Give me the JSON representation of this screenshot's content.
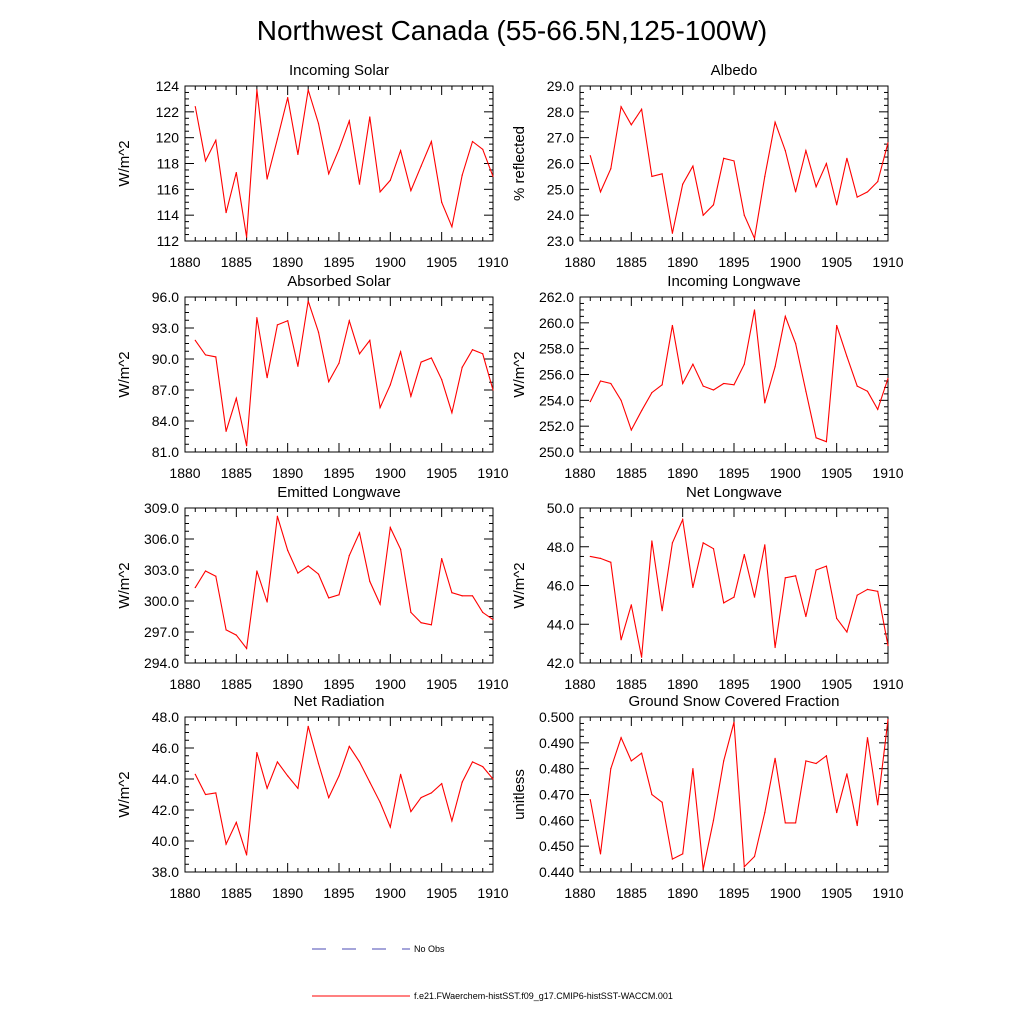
{
  "figure": {
    "title": "Northwest Canada (55-66.5N,125-100W)"
  },
  "legend": {
    "items": [
      {
        "label": "No Obs",
        "color": "#4b4bb4",
        "style": "dashed"
      },
      {
        "label": "f.e21.FWaerchem-histSST.f09_g17.CMIP6-histSST-WACCM.001",
        "color": "#ff0000",
        "style": "solid"
      }
    ]
  },
  "chart_data": [
    {
      "type": "line",
      "title": "Incoming Solar",
      "ylabel": "W/m^2",
      "xlim": [
        1880,
        1910
      ],
      "ylim": [
        112,
        124
      ],
      "xticks": [
        "1880",
        "1885",
        "1890",
        "1895",
        "1900",
        "1905",
        "1910"
      ],
      "yticks": [
        "112",
        "114",
        "116",
        "118",
        "120",
        "122",
        "124"
      ],
      "series": [
        {
          "color": "#ff0000",
          "x": [
            1881,
            1882,
            1883,
            1884,
            1885,
            1886,
            1887,
            1888,
            1889,
            1890,
            1891,
            1892,
            1893,
            1894,
            1895,
            1896,
            1897,
            1898,
            1899,
            1900,
            1901,
            1902,
            1903,
            1904,
            1905,
            1906,
            1907,
            1908,
            1909,
            1910
          ],
          "values": [
            122.4,
            118.2,
            119.8,
            114.2,
            117.3,
            112.3,
            123.7,
            116.8,
            119.9,
            123.1,
            118.7,
            123.7,
            121.1,
            117.2,
            119.1,
            121.3,
            116.4,
            121.6,
            115.8,
            116.7,
            119.0,
            115.9,
            117.8,
            119.7,
            115.0,
            113.1,
            117.1,
            119.7,
            119.1,
            117.0
          ]
        }
      ]
    },
    {
      "type": "line",
      "title": "Albedo",
      "ylabel": "% reflected",
      "xlim": [
        1880,
        1910
      ],
      "ylim": [
        23.0,
        29.0
      ],
      "xticks": [
        "1880",
        "1885",
        "1890",
        "1895",
        "1900",
        "1905",
        "1910"
      ],
      "yticks": [
        "23.0",
        "24.0",
        "25.0",
        "26.0",
        "27.0",
        "28.0",
        "29.0"
      ],
      "series": [
        {
          "color": "#ff0000",
          "x": [
            1881,
            1882,
            1883,
            1884,
            1885,
            1886,
            1887,
            1888,
            1889,
            1890,
            1891,
            1892,
            1893,
            1894,
            1895,
            1896,
            1897,
            1898,
            1899,
            1900,
            1901,
            1902,
            1903,
            1904,
            1905,
            1906,
            1907,
            1908,
            1909,
            1910
          ],
          "values": [
            26.3,
            24.9,
            25.8,
            28.2,
            27.5,
            28.1,
            25.5,
            25.6,
            23.3,
            25.2,
            25.9,
            24.0,
            24.4,
            26.2,
            26.1,
            24.0,
            23.1,
            25.5,
            27.6,
            26.5,
            24.9,
            26.5,
            25.1,
            26.0,
            24.4,
            26.2,
            24.7,
            24.9,
            25.3,
            26.8
          ]
        }
      ]
    },
    {
      "type": "line",
      "title": "Absorbed Solar",
      "ylabel": "W/m^2",
      "xlim": [
        1880,
        1910
      ],
      "ylim": [
        81.0,
        96.0
      ],
      "xticks": [
        "1880",
        "1885",
        "1890",
        "1895",
        "1900",
        "1905",
        "1910"
      ],
      "yticks": [
        "81.0",
        "84.0",
        "87.0",
        "90.0",
        "93.0",
        "96.0"
      ],
      "series": [
        {
          "color": "#ff0000",
          "x": [
            1881,
            1882,
            1883,
            1884,
            1885,
            1886,
            1887,
            1888,
            1889,
            1890,
            1891,
            1892,
            1893,
            1894,
            1895,
            1896,
            1897,
            1898,
            1899,
            1900,
            1901,
            1902,
            1903,
            1904,
            1905,
            1906,
            1907,
            1908,
            1909,
            1910
          ],
          "values": [
            91.8,
            90.4,
            90.2,
            83.0,
            86.2,
            81.6,
            94.0,
            88.2,
            93.3,
            93.7,
            89.3,
            95.6,
            92.6,
            87.8,
            89.6,
            93.7,
            90.5,
            91.8,
            85.3,
            87.5,
            90.7,
            86.4,
            89.7,
            90.1,
            88.0,
            84.8,
            89.2,
            90.9,
            90.5,
            87.0
          ]
        }
      ]
    },
    {
      "type": "line",
      "title": "Incoming Longwave",
      "ylabel": "W/m^2",
      "xlim": [
        1880,
        1910
      ],
      "ylim": [
        250.0,
        262.0
      ],
      "xticks": [
        "1880",
        "1885",
        "1890",
        "1895",
        "1900",
        "1905",
        "1910"
      ],
      "yticks": [
        "250.0",
        "252.0",
        "254.0",
        "256.0",
        "258.0",
        "260.0",
        "262.0"
      ],
      "series": [
        {
          "color": "#ff0000",
          "x": [
            1881,
            1882,
            1883,
            1884,
            1885,
            1886,
            1887,
            1888,
            1889,
            1890,
            1891,
            1892,
            1893,
            1894,
            1895,
            1896,
            1897,
            1898,
            1899,
            1900,
            1901,
            1902,
            1903,
            1904,
            1905,
            1906,
            1907,
            1908,
            1909,
            1910
          ],
          "values": [
            253.9,
            255.5,
            255.3,
            254.0,
            251.7,
            253.2,
            254.6,
            255.2,
            259.8,
            255.3,
            256.8,
            255.1,
            254.8,
            255.3,
            255.2,
            256.8,
            261.0,
            253.8,
            256.6,
            260.5,
            258.4,
            254.7,
            251.1,
            250.8,
            259.8,
            257.4,
            255.1,
            254.7,
            253.3,
            255.7
          ]
        }
      ]
    },
    {
      "type": "line",
      "title": "Emitted Longwave",
      "ylabel": "W/m^2",
      "xlim": [
        1880,
        1910
      ],
      "ylim": [
        294.0,
        309.0
      ],
      "xticks": [
        "1880",
        "1885",
        "1890",
        "1895",
        "1900",
        "1905",
        "1910"
      ],
      "yticks": [
        "294.0",
        "297.0",
        "300.0",
        "303.0",
        "306.0",
        "309.0"
      ],
      "series": [
        {
          "color": "#ff0000",
          "x": [
            1881,
            1882,
            1883,
            1884,
            1885,
            1886,
            1887,
            1888,
            1889,
            1890,
            1891,
            1892,
            1893,
            1894,
            1895,
            1896,
            1897,
            1898,
            1899,
            1900,
            1901,
            1902,
            1903,
            1904,
            1905,
            1906,
            1907,
            1908,
            1909,
            1910
          ],
          "values": [
            301.3,
            302.9,
            302.4,
            297.2,
            296.7,
            295.4,
            302.9,
            299.9,
            308.2,
            304.9,
            302.7,
            303.4,
            302.6,
            300.3,
            300.6,
            304.4,
            306.6,
            301.9,
            299.7,
            307.1,
            305.0,
            298.9,
            297.9,
            297.7,
            304.1,
            300.8,
            300.5,
            300.5,
            298.9,
            298.2
          ]
        }
      ]
    },
    {
      "type": "line",
      "title": "Net Longwave",
      "ylabel": "W/m^2",
      "xlim": [
        1880,
        1910
      ],
      "ylim": [
        42.0,
        50.0
      ],
      "xticks": [
        "1880",
        "1885",
        "1890",
        "1895",
        "1900",
        "1905",
        "1910"
      ],
      "yticks": [
        "42.0",
        "44.0",
        "46.0",
        "48.0",
        "50.0"
      ],
      "series": [
        {
          "color": "#ff0000",
          "x": [
            1881,
            1882,
            1883,
            1884,
            1885,
            1886,
            1887,
            1888,
            1889,
            1890,
            1891,
            1892,
            1893,
            1894,
            1895,
            1896,
            1897,
            1898,
            1899,
            1900,
            1901,
            1902,
            1903,
            1904,
            1905,
            1906,
            1907,
            1908,
            1909,
            1910
          ],
          "values": [
            47.5,
            47.4,
            47.2,
            43.2,
            45.0,
            42.3,
            48.3,
            44.7,
            48.2,
            49.4,
            45.9,
            48.2,
            47.9,
            45.1,
            45.4,
            47.6,
            45.4,
            48.1,
            42.8,
            46.4,
            46.5,
            44.4,
            46.8,
            47.0,
            44.3,
            43.6,
            45.5,
            45.8,
            45.7,
            42.9
          ]
        }
      ]
    },
    {
      "type": "line",
      "title": "Net Radiation",
      "ylabel": "W/m^2",
      "xlim": [
        1880,
        1910
      ],
      "ylim": [
        38.0,
        48.0
      ],
      "xticks": [
        "1880",
        "1885",
        "1890",
        "1895",
        "1900",
        "1905",
        "1910"
      ],
      "yticks": [
        "38.0",
        "40.0",
        "42.0",
        "44.0",
        "46.0",
        "48.0"
      ],
      "series": [
        {
          "color": "#ff0000",
          "x": [
            1881,
            1882,
            1883,
            1884,
            1885,
            1886,
            1887,
            1888,
            1889,
            1890,
            1891,
            1892,
            1893,
            1894,
            1895,
            1896,
            1897,
            1898,
            1899,
            1900,
            1901,
            1902,
            1903,
            1904,
            1905,
            1906,
            1907,
            1908,
            1909,
            1910
          ],
          "values": [
            44.3,
            43.0,
            43.1,
            39.8,
            41.2,
            39.1,
            45.7,
            43.4,
            45.1,
            44.2,
            43.4,
            47.4,
            45.0,
            42.8,
            44.2,
            46.1,
            45.1,
            43.8,
            42.5,
            40.9,
            44.3,
            41.9,
            42.8,
            43.1,
            43.7,
            41.3,
            43.8,
            45.1,
            44.8,
            44.0
          ]
        }
      ]
    },
    {
      "type": "line",
      "title": "Ground Snow Covered Fraction",
      "ylabel": "unitless",
      "xlim": [
        1880,
        1910
      ],
      "ylim": [
        0.44,
        0.5
      ],
      "xticks": [
        "1880",
        "1885",
        "1890",
        "1895",
        "1900",
        "1905",
        "1910"
      ],
      "yticks": [
        "0.440",
        "0.450",
        "0.460",
        "0.470",
        "0.480",
        "0.490",
        "0.500"
      ],
      "series": [
        {
          "color": "#ff0000",
          "x": [
            1881,
            1882,
            1883,
            1884,
            1885,
            1886,
            1887,
            1888,
            1889,
            1890,
            1891,
            1892,
            1893,
            1894,
            1895,
            1896,
            1897,
            1898,
            1899,
            1900,
            1901,
            1902,
            1903,
            1904,
            1905,
            1906,
            1907,
            1908,
            1909,
            1910
          ],
          "values": [
            0.468,
            0.447,
            0.48,
            0.492,
            0.483,
            0.486,
            0.47,
            0.467,
            0.445,
            0.447,
            0.48,
            0.441,
            0.46,
            0.483,
            0.498,
            0.442,
            0.446,
            0.463,
            0.484,
            0.459,
            0.459,
            0.483,
            0.482,
            0.485,
            0.463,
            0.478,
            0.458,
            0.492,
            0.466,
            0.499
          ]
        }
      ]
    }
  ]
}
